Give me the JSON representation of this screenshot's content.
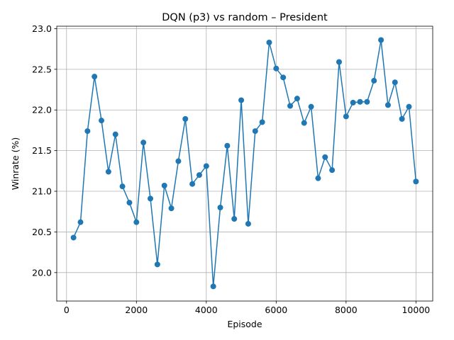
{
  "chart_data": {
    "type": "line",
    "title": "DQN (p3) vs random – President",
    "xlabel": "Episode",
    "ylabel": "Winrate (%)",
    "xlim": [
      -280,
      10480
    ],
    "ylim": [
      19.65,
      23.03
    ],
    "xticks": [
      0,
      2000,
      4000,
      6000,
      8000,
      10000
    ],
    "xtick_labels": [
      "0",
      "2000",
      "4000",
      "6000",
      "8000",
      "10000"
    ],
    "yticks": [
      20.0,
      20.5,
      21.0,
      21.5,
      22.0,
      22.5,
      23.0
    ],
    "ytick_labels": [
      "20.0",
      "20.5",
      "21.0",
      "21.5",
      "22.0",
      "22.5",
      "23.0"
    ],
    "grid": true,
    "color": "#1f77b4",
    "series": [
      {
        "x": [
          200,
          400,
          600,
          800,
          1000,
          1200,
          1400,
          1600,
          1800,
          2000,
          2200,
          2400,
          2600,
          2800,
          3000,
          3200,
          3400,
          3600,
          3800,
          4000,
          4200,
          4400,
          4600,
          4800,
          5000,
          5200,
          5400,
          5600,
          5800,
          6000,
          6200,
          6400,
          6600,
          6800,
          7000,
          7200,
          7400,
          7600,
          7800,
          8000,
          8200,
          8400,
          8600,
          8800,
          9000,
          9200,
          9400,
          9600,
          9800,
          10000
        ],
        "y": [
          20.43,
          20.62,
          21.74,
          22.41,
          21.87,
          21.24,
          21.7,
          21.06,
          20.86,
          20.62,
          21.6,
          20.91,
          20.1,
          21.07,
          20.79,
          21.37,
          21.89,
          21.09,
          21.2,
          21.31,
          19.83,
          20.8,
          21.56,
          20.66,
          22.12,
          20.6,
          21.74,
          21.85,
          22.83,
          22.51,
          22.4,
          22.05,
          22.14,
          21.84,
          22.04,
          21.16,
          21.42,
          21.26,
          22.59,
          21.92,
          22.09,
          22.1,
          22.1,
          22.36,
          22.86,
          22.06,
          22.34,
          21.89,
          22.04,
          21.12
        ]
      }
    ]
  }
}
